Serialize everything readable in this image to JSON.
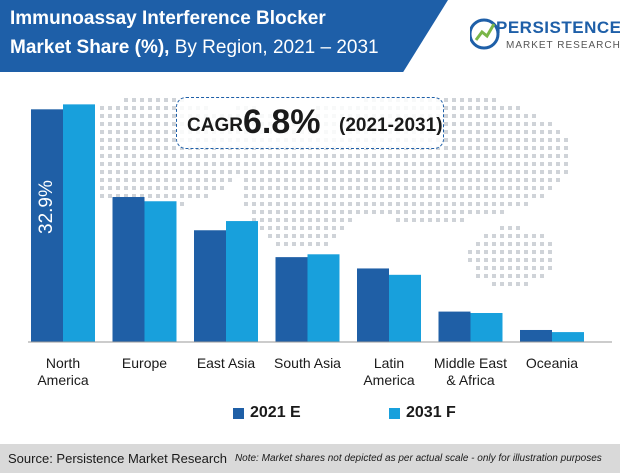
{
  "header": {
    "title_line1": "Immunoassay Interference Blocker",
    "title_line2_bold": "Market Share (%),",
    "title_line2_rest": " By Region, 2021 – 2031"
  },
  "logo": {
    "name": "PERSISTENCE",
    "subtitle": "MARKET RESEARCH"
  },
  "cagr": {
    "label": "CAGR",
    "value": "6.8%",
    "period": "(2021-2031)"
  },
  "colors": {
    "header_bg": "#1e5fa8",
    "series_2021": "#1f5fa6",
    "series_2031": "#18a0dc",
    "footer_bg": "#d9d9d9",
    "map_dots": "#cfd3d8"
  },
  "chart_data": {
    "type": "bar",
    "categories": [
      [
        "North",
        "America"
      ],
      [
        "Europe"
      ],
      [
        "East Asia"
      ],
      [
        "South Asia"
      ],
      [
        "Latin",
        "America"
      ],
      [
        "Middle East",
        "& Africa"
      ],
      [
        "Oceania"
      ]
    ],
    "series": [
      {
        "name": "2021 E",
        "values": [
          32.9,
          20.5,
          15.8,
          12.0,
          10.4,
          4.3,
          1.7
        ]
      },
      {
        "name": "2031 F",
        "values": [
          33.6,
          19.9,
          17.1,
          12.4,
          9.5,
          4.1,
          1.4
        ]
      }
    ],
    "data_labels": [
      {
        "series": 0,
        "index": 0,
        "text": "32.9%"
      }
    ],
    "ylim": [
      0,
      34.5
    ],
    "grid": false,
    "legend_position": "bottom"
  },
  "footer": {
    "source": "Source: Persistence Market Research",
    "note": "Note: Market shares not depicted as per actual scale - only for illustration purposes"
  }
}
